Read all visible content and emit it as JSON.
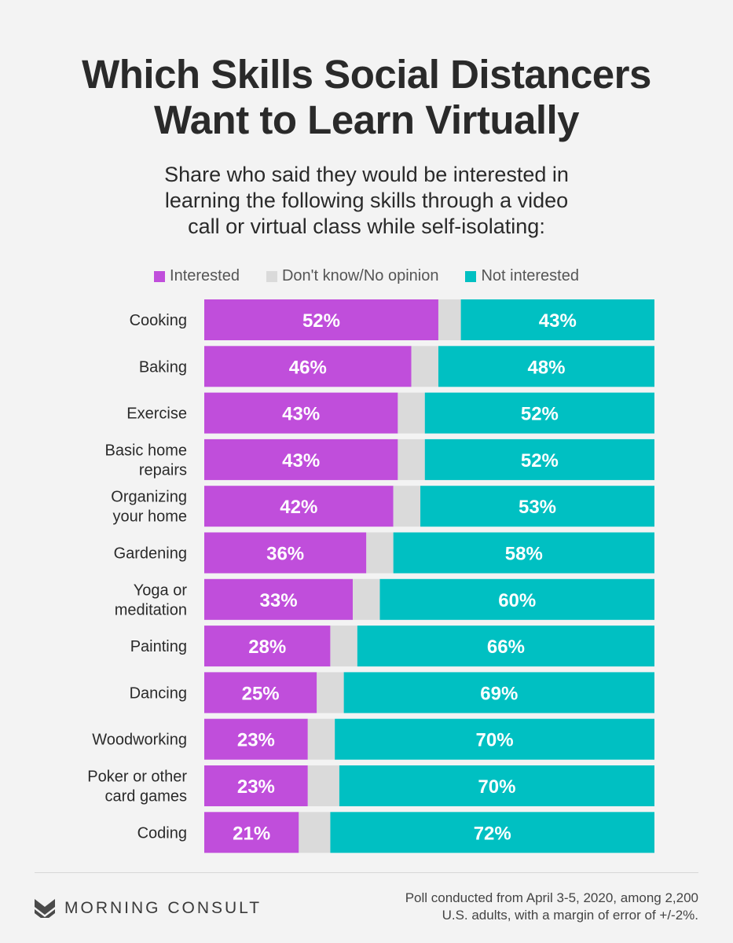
{
  "title_line1": "Which Skills Social Distancers",
  "title_line2": "Want to Learn Virtually",
  "subtitle_line1": "Share who said they would be interested in",
  "subtitle_line2": "learning the following skills through a video",
  "subtitle_line3": "call or virtual class while self-isolating:",
  "legend": {
    "interested": "Interested",
    "dont_know": "Don't know/No opinion",
    "not_interested": "Not interested"
  },
  "colors": {
    "interested": "#c04edb",
    "dont_know": "#dadada",
    "not_interested": "#00c0c2",
    "background": "#f3f3f3"
  },
  "chart_data": {
    "type": "bar",
    "orientation": "horizontal-stacked",
    "categories": [
      [
        "Cooking"
      ],
      [
        "Baking"
      ],
      [
        "Exercise"
      ],
      [
        "Basic home",
        "repairs"
      ],
      [
        "Organizing",
        "your home"
      ],
      [
        "Gardening"
      ],
      [
        "Yoga or",
        "meditation"
      ],
      [
        "Painting"
      ],
      [
        "Dancing"
      ],
      [
        "Woodworking"
      ],
      [
        "Poker or other",
        "card games"
      ],
      [
        "Coding"
      ]
    ],
    "series": [
      {
        "name": "Interested",
        "values": [
          52,
          46,
          43,
          43,
          42,
          36,
          33,
          28,
          25,
          23,
          23,
          21
        ]
      },
      {
        "name": "Don't know/No opinion",
        "values": [
          5,
          6,
          6,
          6,
          6,
          6,
          6,
          6,
          6,
          6,
          7,
          7
        ]
      },
      {
        "name": "Not interested",
        "values": [
          43,
          48,
          52,
          52,
          53,
          58,
          60,
          66,
          69,
          70,
          70,
          72
        ]
      }
    ],
    "value_suffix": "%",
    "xlim": [
      0,
      100
    ],
    "legend_position": "top"
  },
  "footer": {
    "logo_text": "MORNING CONSULT",
    "note_line1": "Poll conducted from April 3-5, 2020, among 2,200",
    "note_line2": "U.S. adults, with a margin of error of +/-2%."
  }
}
